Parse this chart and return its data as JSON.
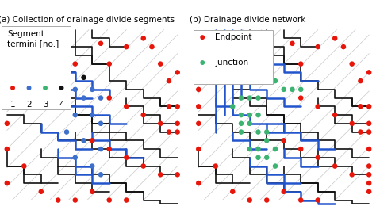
{
  "title_a": "(a) Collection of drainage divide segments",
  "title_b": "(b) Drainage divide network",
  "legend_a_title": "Segment\ntermini [no.]",
  "legend_a_labels": [
    "1",
    "2",
    "3",
    "4"
  ],
  "legend_a_colors": [
    "#e8150a",
    "#3d6fcc",
    "#3cb371",
    "#111111"
  ],
  "legend_b_labels": [
    "Endpoint",
    "Junction"
  ],
  "legend_b_colors": [
    "#e8150a",
    "#3cb371"
  ],
  "bg_color": "#ffffff",
  "gray_line_color": "#c0c0c0",
  "black_line_color": "#111111",
  "blue_line_color": "#2255cc",
  "title_fontsize": 7.5,
  "legend_fontsize": 7.5,
  "dot_size": 22
}
